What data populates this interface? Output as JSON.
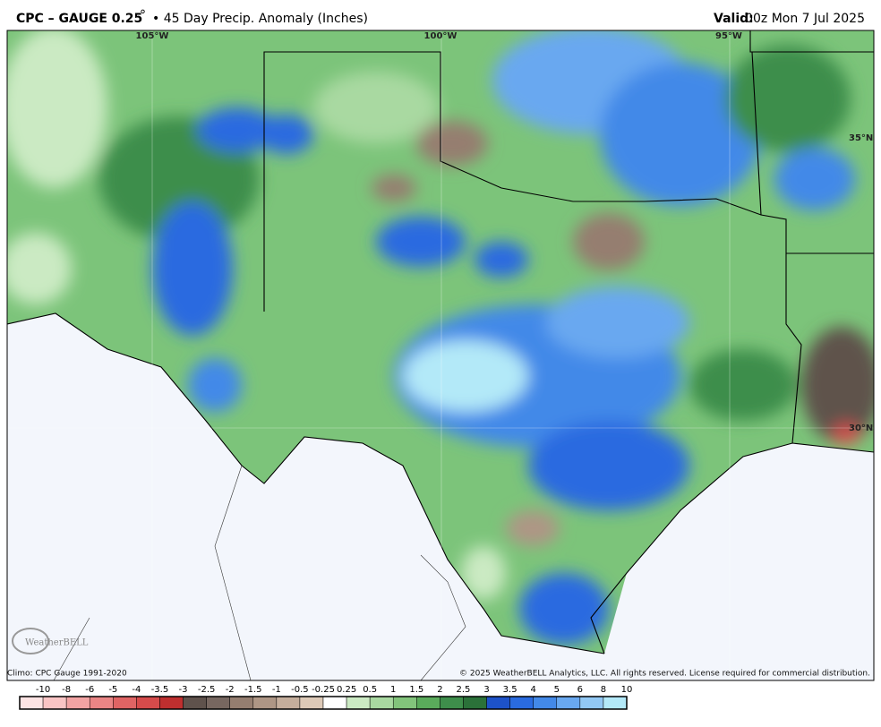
{
  "header": {
    "title": "CPC – GAUGE 0.25",
    "degree": "°",
    "subtitle": "• 45 Day Precip. Anomaly (Inches)",
    "valid_label": "Valid:",
    "valid_time": "00z Mon 7 Jul 2025"
  },
  "map": {
    "longitudes": [
      "105°W",
      "100°W",
      "95°W"
    ],
    "latitudes": [
      "35°N",
      "30°N"
    ],
    "logo": "WeatherBELL"
  },
  "footer": {
    "climo": "Climo: CPC Gauge 1991-2020",
    "copyright": "© 2025 WeatherBELL Analytics, LLC. All rights reserved. License required for commercial distribution."
  },
  "legend": {
    "labels": [
      "-10",
      "-8",
      "-6",
      "-5",
      "-4",
      "-3.5",
      "-3",
      "-2.5",
      "-2",
      "-1.5",
      "-1",
      "-0.5",
      "-0.25",
      "0.25",
      "0.5",
      "1",
      "1.5",
      "2",
      "2.5",
      "3",
      "3.5",
      "4",
      "5",
      "6",
      "8",
      "10"
    ],
    "colors": [
      "#fde3e3",
      "#f9c4c4",
      "#f2a3a3",
      "#ea8585",
      "#e06464",
      "#d64b4b",
      "#bf2f2f",
      "#5f524c",
      "#776760",
      "#957e70",
      "#ae9685",
      "#c5ae9c",
      "#ddc9b7",
      "#ffffff",
      "#cbeac3",
      "#a9d9a1",
      "#82c47b",
      "#5aab5b",
      "#3e8e4b",
      "#2b7139",
      "#1d52c9",
      "#2a6be0",
      "#4389e8",
      "#69a8f0",
      "#92c8f4",
      "#b3e9f8"
    ]
  }
}
